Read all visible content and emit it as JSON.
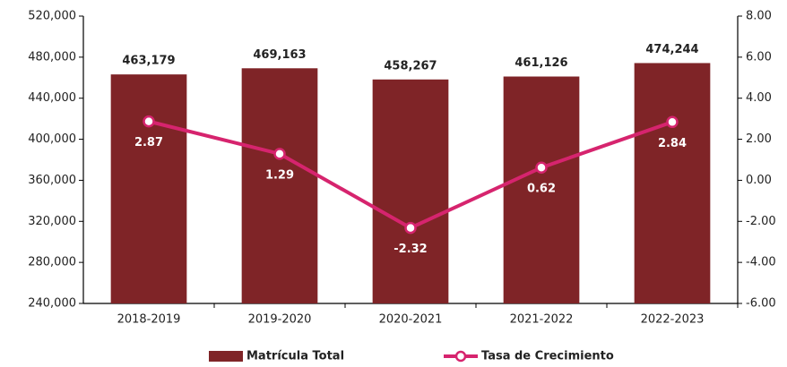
{
  "chart_data": {
    "type": "bar",
    "categories": [
      "2018-2019",
      "2019-2020",
      "2020-2021",
      "2021-2022",
      "2022-2023"
    ],
    "series": [
      {
        "name": "Matrícula Total",
        "type": "bar",
        "color": "#7f2427",
        "values": [
          463179,
          469163,
          458267,
          461126,
          474244
        ],
        "value_labels": [
          "463,179",
          "469,163",
          "458,267",
          "461,126",
          "474,244"
        ]
      },
      {
        "name": "Tasa de Crecimiento",
        "type": "line",
        "axis": "y2",
        "color": "#d6246e",
        "values": [
          2.87,
          1.29,
          -2.32,
          0.62,
          2.84
        ]
      }
    ],
    "ylim": [
      240000,
      520000
    ],
    "yticks": [
      {
        "value": 240000,
        "label": "240,000"
      },
      {
        "value": 280000,
        "label": "280,000"
      },
      {
        "value": 320000,
        "label": "320,000"
      },
      {
        "value": 360000,
        "label": "360,000"
      },
      {
        "value": 400000,
        "label": "400,000"
      },
      {
        "value": 440000,
        "label": "440,000"
      },
      {
        "value": 480000,
        "label": "480,000"
      },
      {
        "value": 520000,
        "label": "520,000"
      }
    ],
    "y2lim": [
      -6,
      8
    ],
    "y2ticks": [
      {
        "value": -6,
        "label": "-6.00"
      },
      {
        "value": -4,
        "label": "-4.00"
      },
      {
        "value": -2,
        "label": "-2.00"
      },
      {
        "value": 0,
        "label": "0.00"
      },
      {
        "value": 2,
        "label": "2.00"
      },
      {
        "value": 4,
        "label": "4.00"
      },
      {
        "value": 6,
        "label": "6.00"
      },
      {
        "value": 8,
        "label": "8.00"
      }
    ],
    "grid": false,
    "legend": "bottom"
  }
}
